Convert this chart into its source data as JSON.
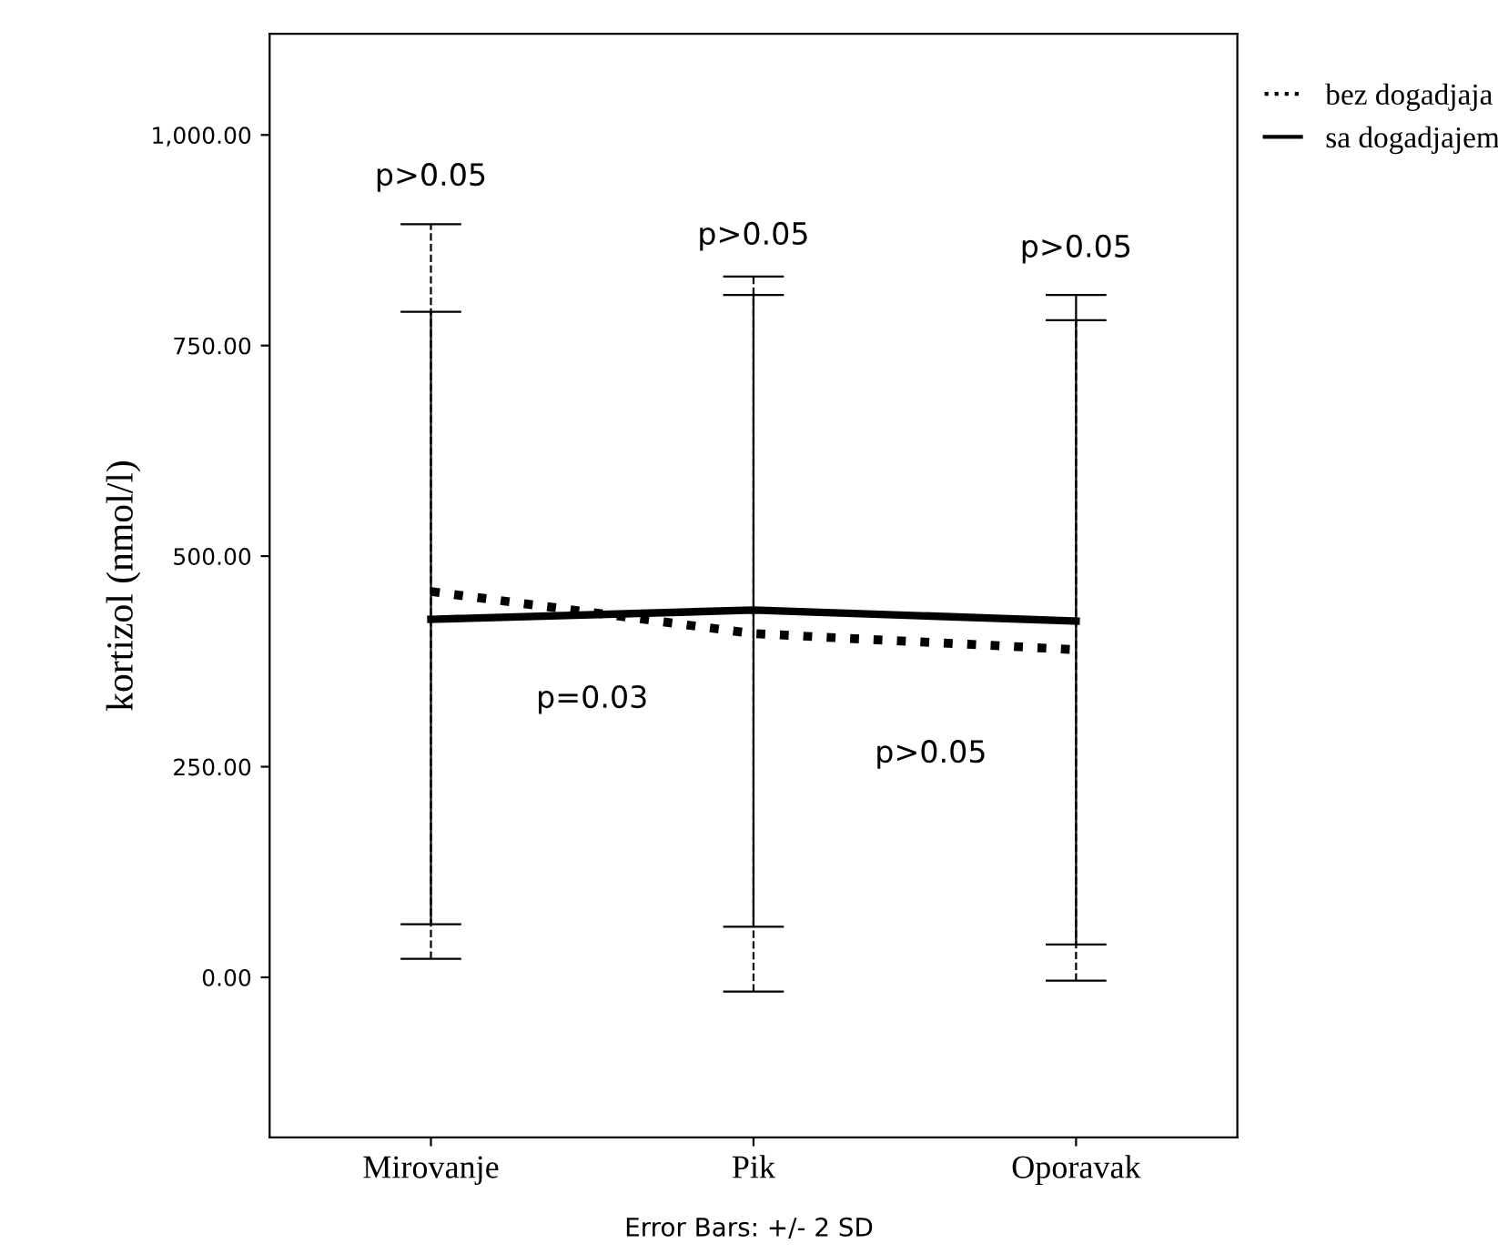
{
  "chart_data": {
    "type": "line",
    "ylabel": "kortizol (nmol/l)",
    "categories": [
      "Mirovanje",
      "Pik",
      "Oporavak"
    ],
    "series": [
      {
        "name": "bez dogadjaja",
        "color": "#000000",
        "line_style": "dotted",
        "values": [
          458,
          408,
          389
        ],
        "errors": [
          [
            22,
            894
          ],
          [
            -17,
            832
          ],
          [
            -4,
            780
          ]
        ]
      },
      {
        "name": "sa dogadjajem",
        "color": "#000000",
        "line_style": "solid",
        "values": [
          425,
          436,
          423
        ],
        "errors": [
          [
            63,
            790
          ],
          [
            60,
            810
          ],
          [
            39,
            810
          ]
        ]
      }
    ],
    "ylim": [
      -190,
      1120
    ],
    "yticks": [
      {
        "value": 0,
        "label": "0.00"
      },
      {
        "value": 250,
        "label": "250.00"
      },
      {
        "value": 500,
        "label": "500.00"
      },
      {
        "value": 750,
        "label": "750.00"
      },
      {
        "value": 1000,
        "label": "1,000.00"
      }
    ],
    "grid": false,
    "legend": "top right",
    "marker": "none",
    "annotations": [
      "p>0.05",
      "p>0.05",
      "p>0.05",
      "p=0.03",
      "p>0.05",
      "Error Bars: +/- 2 SD"
    ]
  }
}
